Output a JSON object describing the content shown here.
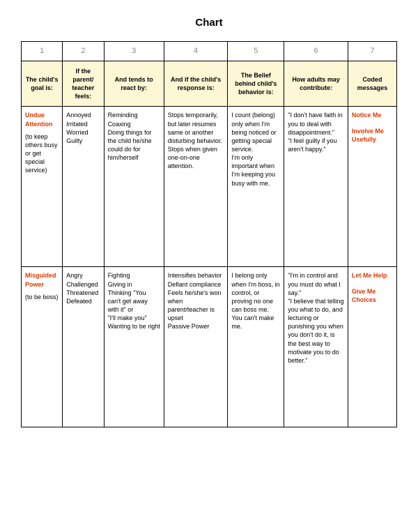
{
  "title": "Chart",
  "columns": {
    "numbers": [
      "1",
      "2",
      "3",
      "4",
      "5",
      "6",
      "7"
    ],
    "headers": [
      "The child's goal is:",
      "If the parent/ teacher feels:",
      "And tends to react by:",
      "And if the child's response is:",
      "The Belief behind child's behavior is:",
      "How adults may contribute:",
      "Coded messages"
    ]
  },
  "rows": [
    {
      "goal_title": "Undue Attention",
      "goal_sub": "(to keep others busy or get special service)",
      "feels": "Annoyed\nIrritated\nWorried\nGuilty",
      "react": "Reminding\nCoaxing\nDoing things for the child he/she could do for him/herself",
      "response": "Stops temporarily, but later resumes same or another disturbing behavior.\nStops when given one-on-one attention.",
      "belief": "I count (belong) only when I'm being noticed or getting special service.\nI'm only important when I'm keeping you busy with me.",
      "contribute": "\"I don't have faith in you to deal with disappointment.\"\n\"I feel guilty if you aren't happy.\"",
      "coded": [
        "Notice Me",
        "Involve Me Usefully"
      ]
    },
    {
      "goal_title": "Misguided Power",
      "goal_sub": "(to be boss)",
      "feels": "Angry\nChallenged\nThreatened\nDefeated",
      "react": "Fighting\nGiving in\nThinking \"You can't get away with it\" or\n\"I'll make you\"\nWanting to be right",
      "response": "Intensifies behavior\nDefiant compliance\nFeels he/she's won when parent/teacher is upset\nPassive Power",
      "belief": "I belong only when I'm boss, in control, or proving no one can boss me.\nYou can't make me.",
      "contribute": "\"I'm in control and you must do what I say.\"\n\"I believe that telling you what to do, and lecturing or punishing you when you don't do it, is the best way to motivate you to do better.\"",
      "coded": [
        "Let Me Help",
        "Give Me Choices"
      ]
    }
  ],
  "colors": {
    "header_bg": "#fdf7d6",
    "accent": "#d83a00",
    "num_color": "#888888",
    "border": "#000000"
  }
}
